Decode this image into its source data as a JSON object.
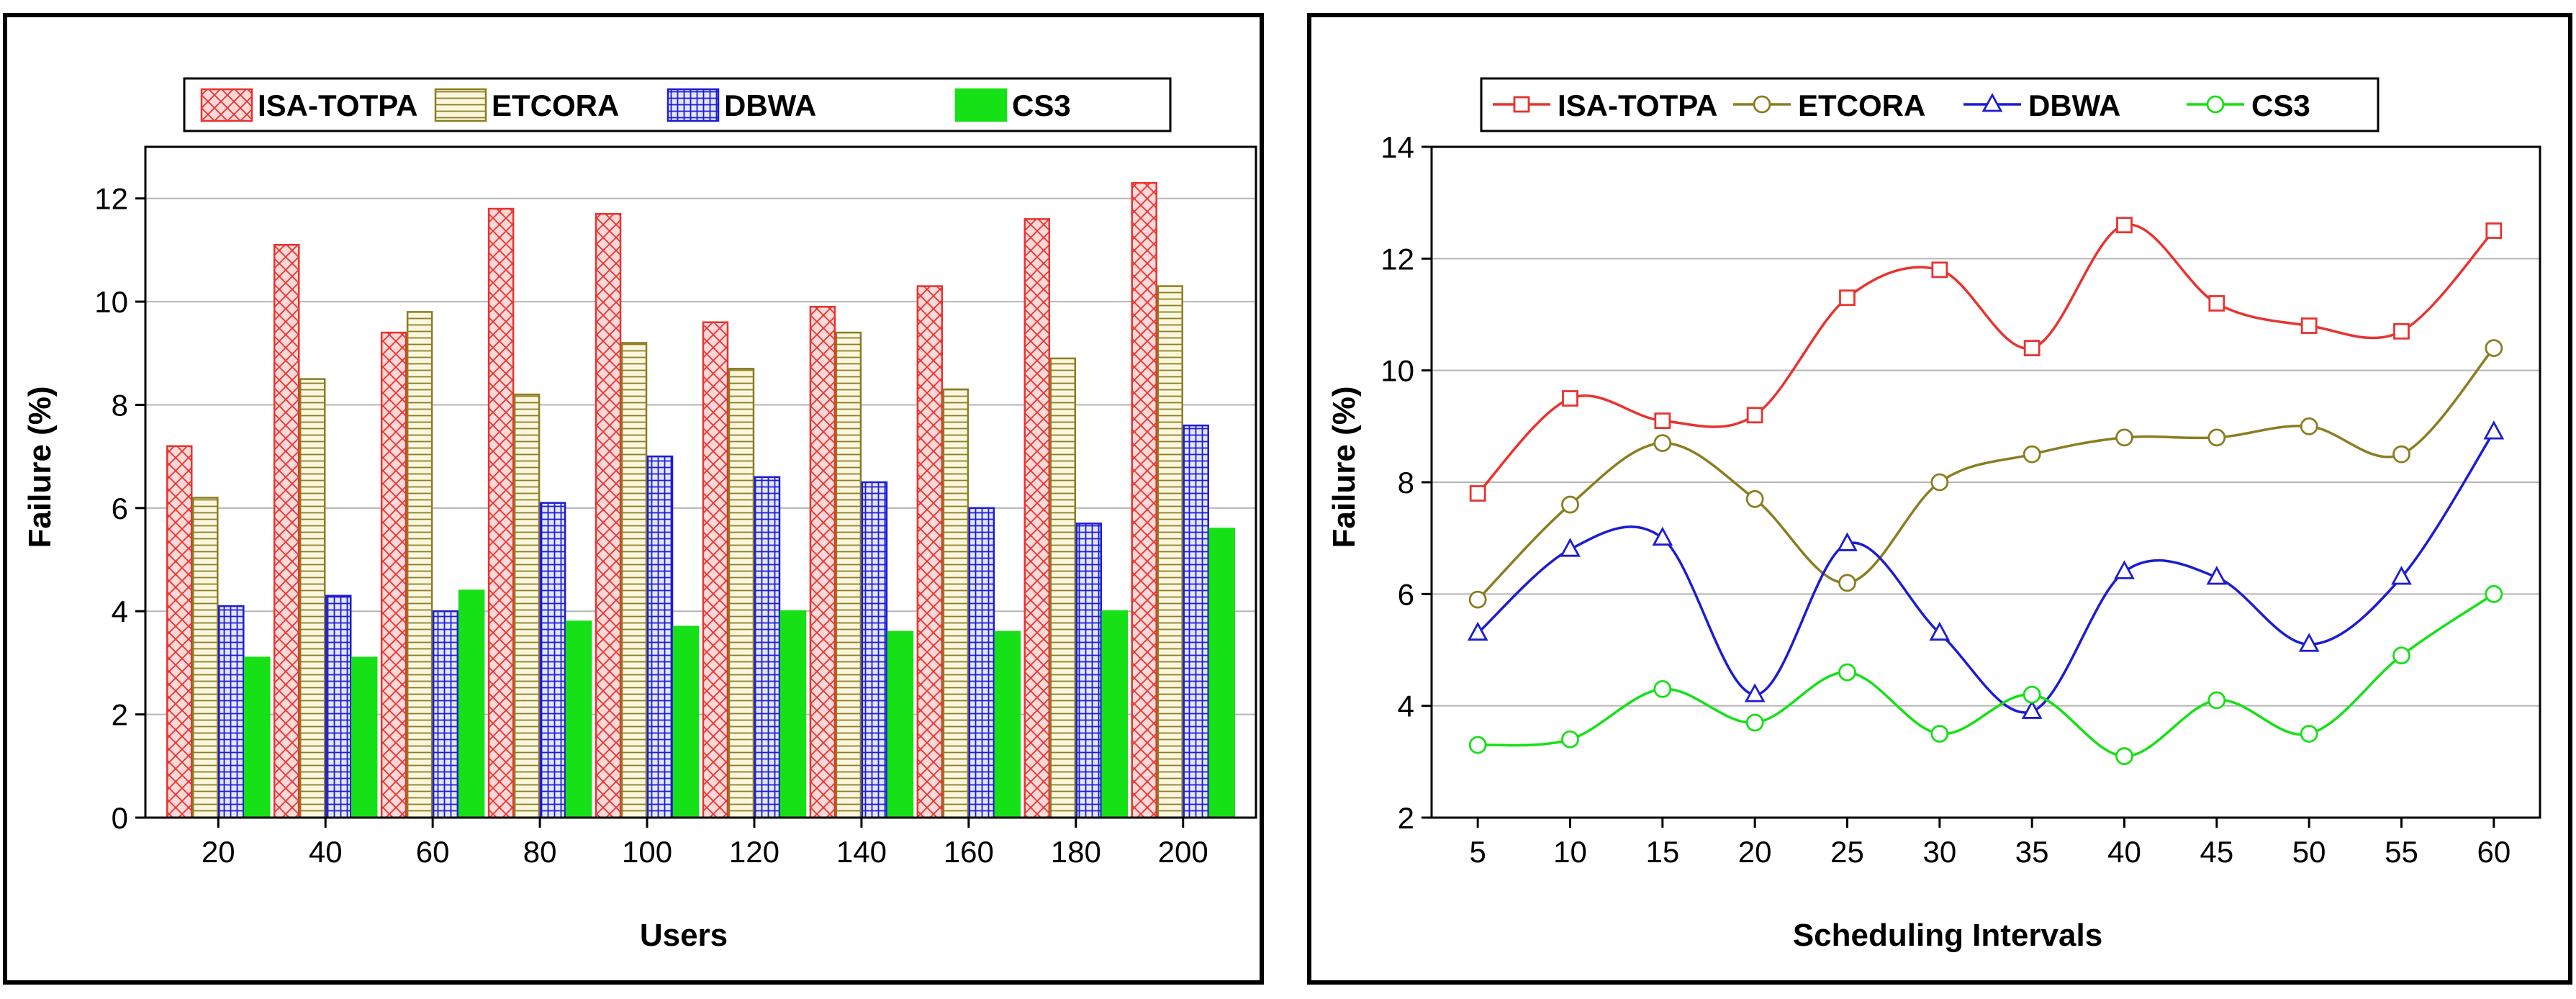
{
  "chart_data": [
    {
      "type": "bar",
      "xlabel": "Users",
      "ylabel": "Failure (%)",
      "ylim": [
        0,
        13
      ],
      "yticks": [
        0,
        2,
        4,
        6,
        8,
        10,
        12
      ],
      "grid": true,
      "legend_position": "top",
      "categories": [
        "20",
        "40",
        "60",
        "80",
        "100",
        "120",
        "140",
        "160",
        "180",
        "200"
      ],
      "series": [
        {
          "name": "ISA-TOTPA",
          "color": "#e8332f",
          "fill": "#ffd8d8",
          "pattern": "crosshatch-diagonal",
          "values": [
            7.2,
            11.1,
            9.4,
            11.8,
            11.7,
            9.6,
            9.9,
            10.3,
            11.6,
            12.3
          ]
        },
        {
          "name": "ETCORA",
          "color": "#8b7d22",
          "fill": "#fbf6de",
          "pattern": "horizontal-lines",
          "values": [
            6.2,
            8.5,
            9.8,
            8.2,
            9.2,
            8.7,
            9.4,
            8.3,
            8.9,
            10.3
          ]
        },
        {
          "name": "DBWA",
          "color": "#1c1cd2",
          "fill": "#e3e6ff",
          "pattern": "grid",
          "values": [
            4.1,
            4.3,
            4.0,
            6.1,
            7.0,
            6.6,
            6.5,
            6.0,
            5.7,
            7.6
          ]
        },
        {
          "name": "CS3",
          "color": "#16e016",
          "fill": "#16e016",
          "pattern": "solid",
          "values": [
            3.1,
            3.1,
            4.4,
            3.8,
            3.7,
            4.0,
            3.6,
            3.6,
            4.0,
            5.6
          ]
        }
      ]
    },
    {
      "type": "line",
      "xlabel": "Scheduling Intervals",
      "ylabel": "Failure (%)",
      "xlim": [
        2.5,
        62.5
      ],
      "ylim": [
        2,
        14
      ],
      "yticks": [
        2,
        4,
        6,
        8,
        10,
        12,
        14
      ],
      "grid": true,
      "legend_position": "top",
      "x": [
        5,
        10,
        15,
        20,
        25,
        30,
        35,
        40,
        45,
        50,
        55,
        60
      ],
      "series": [
        {
          "name": "ISA-TOTPA",
          "color": "#e8332f",
          "marker": "square",
          "values": [
            7.8,
            9.5,
            9.1,
            9.2,
            11.3,
            11.8,
            10.4,
            12.6,
            11.2,
            10.8,
            10.7,
            12.5
          ]
        },
        {
          "name": "ETCORA",
          "color": "#8b7d22",
          "marker": "circle",
          "values": [
            5.9,
            7.6,
            8.7,
            7.7,
            6.2,
            8.0,
            8.5,
            8.8,
            8.8,
            9.0,
            8.5,
            10.4
          ]
        },
        {
          "name": "DBWA",
          "color": "#1c1cd2",
          "marker": "triangle",
          "values": [
            5.3,
            6.8,
            7.0,
            4.2,
            6.9,
            5.3,
            3.9,
            6.4,
            6.3,
            5.1,
            6.3,
            8.9
          ]
        },
        {
          "name": "CS3",
          "color": "#16e016",
          "marker": "circle",
          "values": [
            3.3,
            3.4,
            4.3,
            3.7,
            4.6,
            3.5,
            4.2,
            3.1,
            4.1,
            3.5,
            4.9,
            6.0
          ]
        }
      ]
    }
  ]
}
